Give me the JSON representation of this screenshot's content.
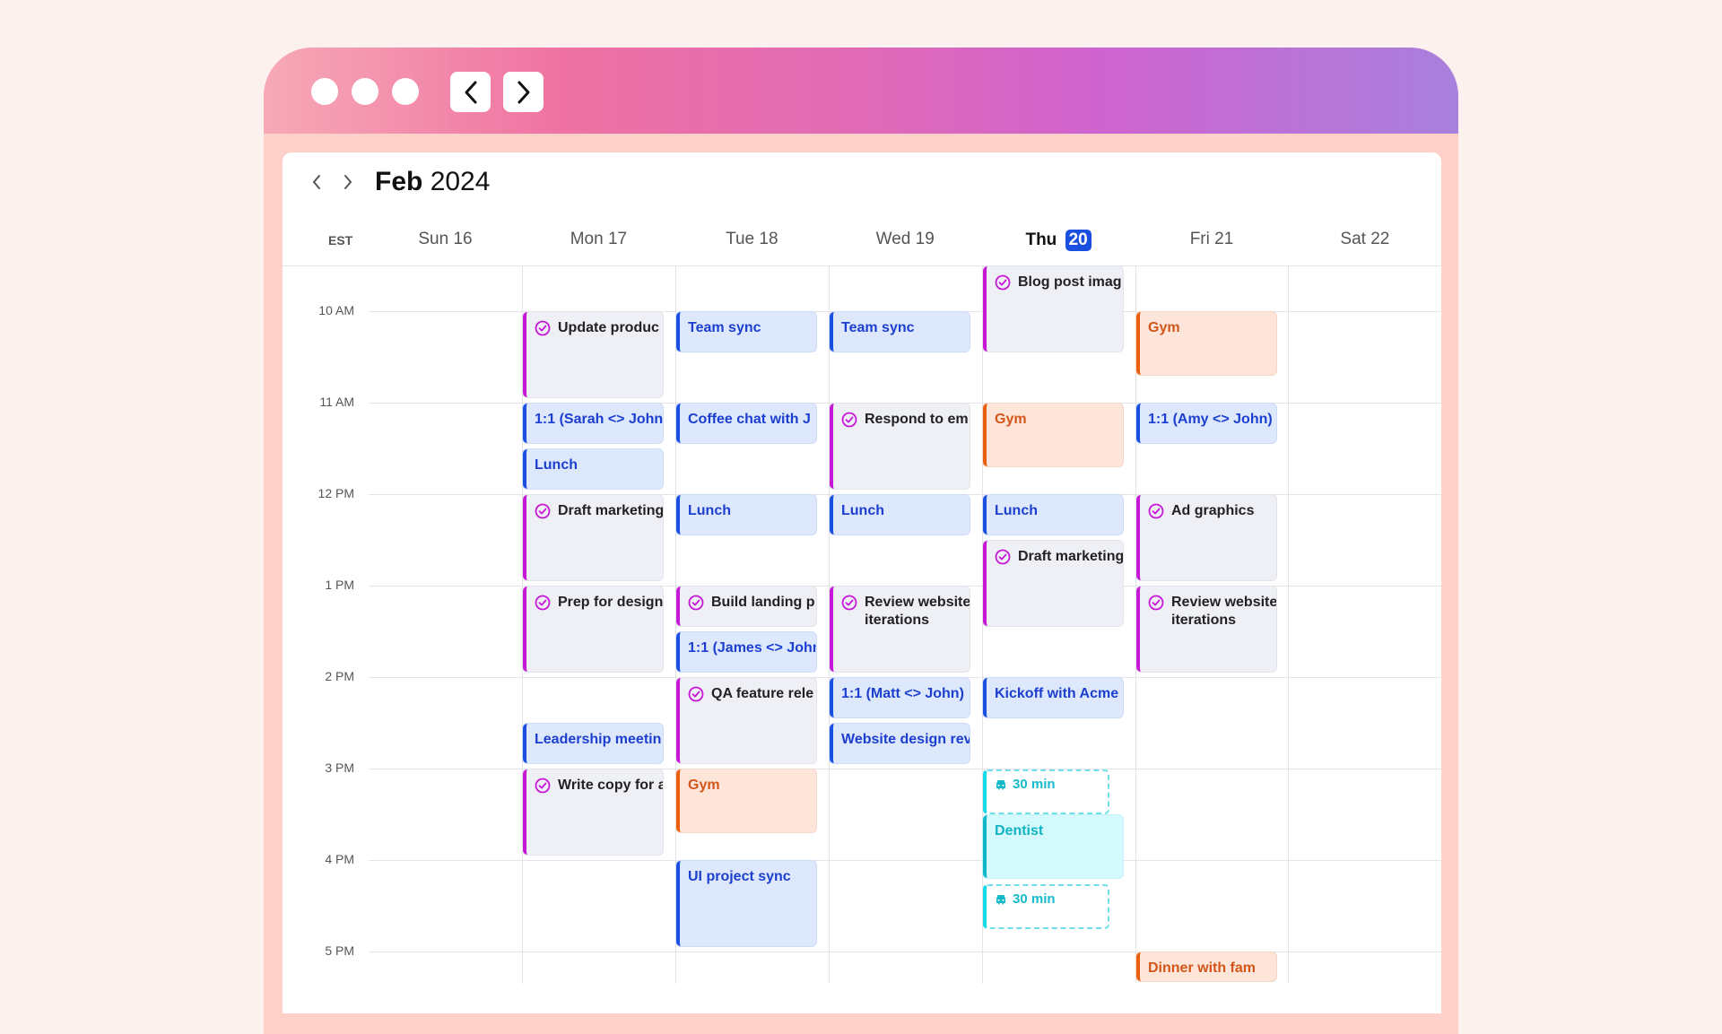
{
  "window": {
    "controls": [
      "close",
      "minimize",
      "maximize"
    ],
    "back_icon": "chevron-left-icon",
    "forward_icon": "chevron-right-icon"
  },
  "header": {
    "month": "Feb",
    "year": "2024",
    "prev_icon": "chevron-left-icon",
    "next_icon": "chevron-right-icon",
    "timezone": "EST"
  },
  "days": [
    {
      "name": "Sun",
      "date": "16"
    },
    {
      "name": "Mon",
      "date": "17"
    },
    {
      "name": "Tue",
      "date": "18"
    },
    {
      "name": "Wed",
      "date": "19"
    },
    {
      "name": "Thu",
      "date": "20",
      "today": true
    },
    {
      "name": "Fri",
      "date": "21"
    },
    {
      "name": "Sat",
      "date": "22"
    }
  ],
  "hours": [
    "10 AM",
    "11 AM",
    "12 PM",
    "1 PM",
    "2 PM",
    "3 PM",
    "4 PM",
    "5 PM"
  ],
  "colors": {
    "meeting": "#1a4fe0",
    "task": "#c718d8",
    "personal": "#e8600f",
    "appointment": "#0fb8c8",
    "today_badge": "#1a4fe0"
  },
  "events": [
    {
      "day": 1,
      "start": "10:00",
      "end": "11:00",
      "type": "task",
      "title": "Update produc"
    },
    {
      "day": 1,
      "start": "11:00",
      "end": "11:30",
      "type": "meeting",
      "title": "1:1 (Sarah <> John"
    },
    {
      "day": 1,
      "start": "11:30",
      "end": "12:00",
      "type": "meeting",
      "title": "Lunch"
    },
    {
      "day": 1,
      "start": "12:00",
      "end": "13:00",
      "type": "task",
      "title": "Draft marketing"
    },
    {
      "day": 1,
      "start": "13:00",
      "end": "14:00",
      "type": "task",
      "title": "Prep for design"
    },
    {
      "day": 1,
      "start": "14:30",
      "end": "15:00",
      "type": "meeting",
      "title": "Leadership meetin"
    },
    {
      "day": 1,
      "start": "15:00",
      "end": "16:00",
      "type": "task",
      "title": "Write copy for a"
    },
    {
      "day": 2,
      "start": "10:00",
      "end": "10:30",
      "type": "meeting",
      "title": "Team sync"
    },
    {
      "day": 2,
      "start": "11:00",
      "end": "11:30",
      "type": "meeting",
      "title": "Coffee chat with J"
    },
    {
      "day": 2,
      "start": "12:00",
      "end": "12:30",
      "type": "meeting",
      "title": "Lunch"
    },
    {
      "day": 2,
      "start": "13:00",
      "end": "13:30",
      "type": "task",
      "title": "Build landing p"
    },
    {
      "day": 2,
      "start": "13:30",
      "end": "14:00",
      "type": "meeting",
      "title": "1:1 (James <> John"
    },
    {
      "day": 2,
      "start": "14:00",
      "end": "15:00",
      "type": "task",
      "title": "QA feature rele"
    },
    {
      "day": 2,
      "start": "15:00",
      "end": "15:45",
      "type": "personal",
      "title": "Gym"
    },
    {
      "day": 2,
      "start": "16:00",
      "end": "17:00",
      "type": "meeting",
      "title": "UI project sync"
    },
    {
      "day": 3,
      "start": "10:00",
      "end": "10:30",
      "type": "meeting",
      "title": "Team sync"
    },
    {
      "day": 3,
      "start": "11:00",
      "end": "12:00",
      "type": "task",
      "title": "Respond to em"
    },
    {
      "day": 3,
      "start": "12:00",
      "end": "12:30",
      "type": "meeting",
      "title": "Lunch"
    },
    {
      "day": 3,
      "start": "13:00",
      "end": "14:00",
      "type": "task",
      "title": "Review website\niterations"
    },
    {
      "day": 3,
      "start": "14:00",
      "end": "14:30",
      "type": "meeting",
      "title": "1:1 (Matt <> John)"
    },
    {
      "day": 3,
      "start": "14:30",
      "end": "15:00",
      "type": "meeting",
      "title": "Website design rev"
    },
    {
      "day": 4,
      "start": "9:30",
      "end": "10:30",
      "type": "task",
      "title": "Blog post imag"
    },
    {
      "day": 4,
      "start": "11:00",
      "end": "11:45",
      "type": "personal",
      "title": "Gym"
    },
    {
      "day": 4,
      "start": "12:00",
      "end": "12:30",
      "type": "meeting",
      "title": "Lunch"
    },
    {
      "day": 4,
      "start": "12:30",
      "end": "13:30",
      "type": "task",
      "title": "Draft marketing"
    },
    {
      "day": 4,
      "start": "14:00",
      "end": "14:30",
      "type": "meeting",
      "title": "Kickoff with Acme"
    },
    {
      "day": 4,
      "start": "15:00",
      "end": "15:30",
      "type": "travel",
      "title": "30 min"
    },
    {
      "day": 4,
      "start": "16:15",
      "end": "16:45",
      "type": "travel",
      "title": "30 min"
    },
    {
      "day": 4,
      "start": "15:30",
      "end": "16:15",
      "type": "appointment",
      "title": "Dentist"
    },
    {
      "day": 5,
      "start": "10:00",
      "end": "10:45",
      "type": "personal",
      "title": "Gym"
    },
    {
      "day": 5,
      "start": "11:00",
      "end": "11:30",
      "type": "meeting",
      "title": "1:1 (Amy <> John)"
    },
    {
      "day": 5,
      "start": "12:00",
      "end": "13:00",
      "type": "task",
      "title": "Ad graphics"
    },
    {
      "day": 5,
      "start": "13:00",
      "end": "14:00",
      "type": "task",
      "title": "Review website\niterations"
    },
    {
      "day": 5,
      "start": "17:00",
      "end": "18:00",
      "type": "personal",
      "title": "Dinner with fam"
    }
  ]
}
